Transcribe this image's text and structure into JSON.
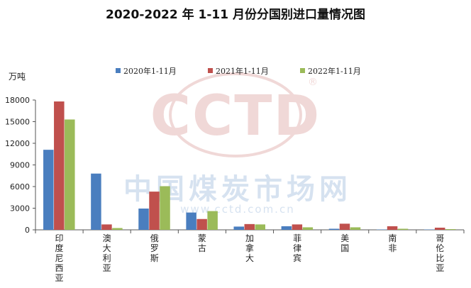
{
  "chart_data": {
    "type": "bar",
    "title": "2020-2022 年 1-11 月份分国别进口量情况图",
    "ylabel": "万吨",
    "ylim": [
      0,
      18000
    ],
    "yticks": [
      0,
      3000,
      6000,
      9000,
      12000,
      15000,
      18000
    ],
    "grid": false,
    "legend_position": "top",
    "categories": [
      "印度尼西亚",
      "澳大利亚",
      "俄罗斯",
      "蒙古",
      "加拿大",
      "菲律宾",
      "美国",
      "南非",
      "哥伦比亚"
    ],
    "series": [
      {
        "name": "2020年1-11月",
        "color": "#4a7ebf",
        "values": [
          11100,
          7800,
          2950,
          2400,
          450,
          500,
          150,
          50,
          50
        ]
      },
      {
        "name": "2021年1-11月",
        "color": "#c0504d",
        "values": [
          17800,
          750,
          5300,
          1500,
          800,
          750,
          850,
          500,
          300
        ]
      },
      {
        "name": "2022年1-11月",
        "color": "#9bbb59",
        "values": [
          15300,
          250,
          6050,
          2600,
          750,
          350,
          350,
          150,
          100
        ]
      }
    ]
  },
  "watermark": {
    "logo": "CCTD",
    "registered": "®",
    "chinese": "中国煤炭市场网",
    "url": "www.cctd.com.cn"
  }
}
